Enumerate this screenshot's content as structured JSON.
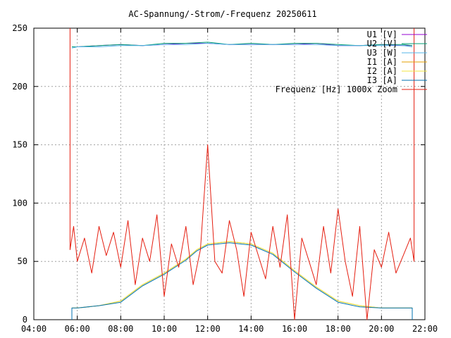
{
  "chart_data": {
    "type": "line",
    "title": "AC-Spannung/-Strom/-Frequenz 20250611",
    "xlabel": "",
    "ylabel": "",
    "xlim": [
      "04:00",
      "22:00"
    ],
    "ylim": [
      0,
      250
    ],
    "x_ticks": [
      "04:00",
      "06:00",
      "08:00",
      "10:00",
      "12:00",
      "14:00",
      "16:00",
      "18:00",
      "20:00",
      "22:00"
    ],
    "y_ticks": [
      "0",
      "50",
      "100",
      "150",
      "200",
      "250"
    ],
    "grid": true,
    "legend_position": "top-right",
    "series": [
      {
        "name": "U1 [V]",
        "color": "#9400d3",
        "x": [
          "05:45",
          "06:00",
          "07:00",
          "08:00",
          "09:00",
          "10:00",
          "11:00",
          "12:00",
          "13:00",
          "14:00",
          "15:00",
          "16:00",
          "17:00",
          "18:00",
          "19:00",
          "20:00",
          "21:00",
          "21:25"
        ],
        "values": [
          234,
          234,
          235,
          236,
          235,
          236,
          237,
          237,
          236,
          236,
          236,
          236,
          237,
          235,
          235,
          236,
          235,
          235
        ]
      },
      {
        "name": "U2 [V]",
        "color": "#009e73",
        "x": [
          "05:45",
          "06:00",
          "07:00",
          "08:00",
          "09:00",
          "10:00",
          "11:00",
          "12:00",
          "13:00",
          "14:00",
          "15:00",
          "16:00",
          "17:00",
          "18:00",
          "19:00",
          "20:00",
          "21:00",
          "21:25"
        ],
        "values": [
          234,
          234,
          235,
          236,
          235,
          237,
          237,
          238,
          236,
          237,
          236,
          237,
          237,
          236,
          235,
          236,
          236,
          235
        ]
      },
      {
        "name": "U3 [W]",
        "color": "#56b4e9",
        "x": [
          "05:45",
          "06:00",
          "07:00",
          "08:00",
          "09:00",
          "10:00",
          "11:00",
          "12:00",
          "13:00",
          "14:00",
          "15:00",
          "16:00",
          "17:00",
          "18:00",
          "19:00",
          "20:00",
          "21:00",
          "21:25"
        ],
        "values": [
          233,
          234,
          234,
          235,
          235,
          236,
          236,
          237,
          236,
          236,
          236,
          236,
          236,
          235,
          235,
          235,
          235,
          234
        ]
      },
      {
        "name": "I1 [A]",
        "color": "#e69f00",
        "x": [
          "05:45",
          "06:00",
          "07:00",
          "08:00",
          "09:00",
          "10:00",
          "11:00",
          "11:30",
          "12:00",
          "13:00",
          "14:00",
          "15:00",
          "16:00",
          "17:00",
          "18:00",
          "19:00",
          "20:00",
          "21:00",
          "21:25"
        ],
        "values": [
          10,
          10,
          12,
          16,
          30,
          40,
          52,
          60,
          65,
          67,
          65,
          57,
          42,
          28,
          16,
          12,
          10,
          10,
          10
        ]
      },
      {
        "name": "I2 [A]",
        "color": "#f0e442",
        "x": [
          "05:45",
          "06:00",
          "07:00",
          "08:00",
          "09:00",
          "10:00",
          "11:00",
          "11:30",
          "12:00",
          "13:00",
          "14:00",
          "15:00",
          "16:00",
          "17:00",
          "18:00",
          "19:00",
          "20:00",
          "21:00",
          "21:25"
        ],
        "values": [
          10,
          10,
          12,
          16,
          30,
          40,
          52,
          60,
          65,
          67,
          65,
          57,
          42,
          28,
          16,
          12,
          10,
          10,
          10
        ]
      },
      {
        "name": "I3 [A]",
        "color": "#0072b2",
        "x": [
          "05:45",
          "06:00",
          "07:00",
          "08:00",
          "09:00",
          "10:00",
          "11:00",
          "11:30",
          "12:00",
          "13:00",
          "14:00",
          "15:00",
          "16:00",
          "17:00",
          "18:00",
          "19:00",
          "20:00",
          "21:00",
          "21:25"
        ],
        "values": [
          10,
          10,
          12,
          15,
          29,
          39,
          51,
          59,
          64,
          66,
          64,
          56,
          41,
          27,
          15,
          11,
          10,
          10,
          10
        ]
      },
      {
        "name": "Frequenz [Hz] 1000x Zoom",
        "color": "#e51e10",
        "x": [
          "05:40",
          "05:50",
          "06:00",
          "06:20",
          "06:40",
          "07:00",
          "07:20",
          "07:40",
          "08:00",
          "08:20",
          "08:40",
          "09:00",
          "09:20",
          "09:40",
          "10:00",
          "10:20",
          "10:40",
          "11:00",
          "11:20",
          "11:40",
          "12:00",
          "12:20",
          "12:40",
          "13:00",
          "13:20",
          "13:40",
          "14:00",
          "14:20",
          "14:40",
          "15:00",
          "15:20",
          "15:40",
          "16:00",
          "16:20",
          "16:40",
          "17:00",
          "17:20",
          "17:40",
          "18:00",
          "18:20",
          "18:40",
          "19:00",
          "19:20",
          "19:40",
          "20:00",
          "20:20",
          "20:40",
          "21:00",
          "21:20",
          "21:30"
        ],
        "values": [
          60,
          80,
          50,
          70,
          40,
          80,
          55,
          75,
          45,
          85,
          30,
          70,
          50,
          90,
          20,
          65,
          45,
          80,
          30,
          60,
          150,
          50,
          40,
          85,
          60,
          20,
          75,
          55,
          35,
          80,
          45,
          90,
          0,
          70,
          50,
          30,
          80,
          40,
          95,
          50,
          20,
          80,
          0,
          60,
          45,
          75,
          40,
          55,
          70,
          50
        ]
      }
    ]
  }
}
